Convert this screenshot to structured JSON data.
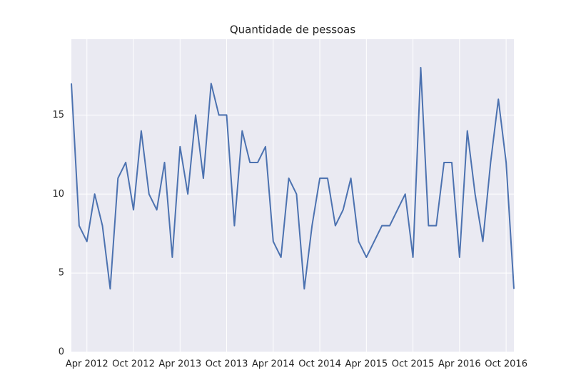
{
  "chart_data": {
    "type": "line",
    "title": "Quantidade de pessoas",
    "x": [
      "2012-02",
      "2012-03",
      "2012-04",
      "2012-05",
      "2012-06",
      "2012-07",
      "2012-08",
      "2012-09",
      "2012-10",
      "2012-11",
      "2012-12",
      "2013-01",
      "2013-02",
      "2013-03",
      "2013-04",
      "2013-05",
      "2013-06",
      "2013-07",
      "2013-08",
      "2013-09",
      "2013-10",
      "2013-11",
      "2013-12",
      "2014-01",
      "2014-02",
      "2014-03",
      "2014-04",
      "2014-05",
      "2014-06",
      "2014-07",
      "2014-08",
      "2014-09",
      "2014-10",
      "2014-11",
      "2014-12",
      "2015-01",
      "2015-02",
      "2015-03",
      "2015-04",
      "2015-05",
      "2015-06",
      "2015-07",
      "2015-08",
      "2015-09",
      "2015-10",
      "2015-11",
      "2015-12",
      "2016-01",
      "2016-02",
      "2016-03",
      "2016-04",
      "2016-05",
      "2016-06",
      "2016-07",
      "2016-08",
      "2016-09",
      "2016-10",
      "2016-11"
    ],
    "values": [
      17,
      8,
      7,
      10,
      8,
      4,
      11,
      12,
      9,
      14,
      10,
      9,
      12,
      6,
      13,
      10,
      15,
      11,
      17,
      15,
      15,
      8,
      14,
      12,
      12,
      13,
      7,
      6,
      11,
      10,
      4,
      8,
      11,
      11,
      8,
      9,
      11,
      7,
      6,
      7,
      8,
      8,
      9,
      10,
      6,
      18,
      8,
      8,
      12,
      12,
      6,
      14,
      10,
      7,
      12,
      16,
      12,
      4
    ],
    "color": "#4c72b0",
    "xlim": [
      "2012-02",
      "2016-11"
    ],
    "xticks": [
      {
        "value": "2012-04",
        "label": "Apr 2012"
      },
      {
        "value": "2012-10",
        "label": "Oct 2012"
      },
      {
        "value": "2013-04",
        "label": "Apr 2013"
      },
      {
        "value": "2013-10",
        "label": "Oct 2013"
      },
      {
        "value": "2014-04",
        "label": "Apr 2014"
      },
      {
        "value": "2014-10",
        "label": "Oct 2014"
      },
      {
        "value": "2015-04",
        "label": "Apr 2015"
      },
      {
        "value": "2015-10",
        "label": "Oct 2015"
      },
      {
        "value": "2016-04",
        "label": "Apr 2016"
      },
      {
        "value": "2016-10",
        "label": "Oct 2016"
      }
    ],
    "ylim": [
      0,
      19.8
    ],
    "yticks": [
      0,
      5,
      10,
      15
    ],
    "grid": true
  }
}
